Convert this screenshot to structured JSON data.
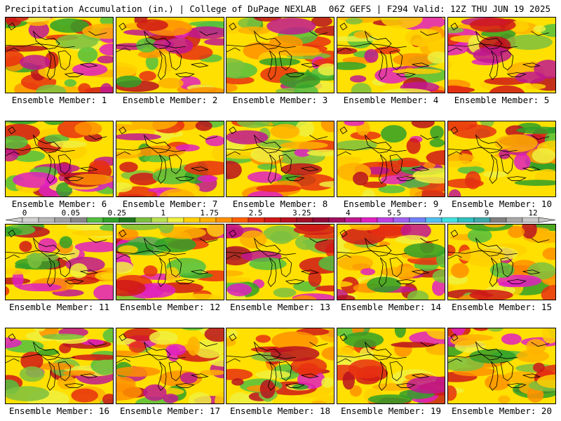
{
  "header": {
    "left": "Precipitation Accumulation (in.) | College of DuPage NEXLAB",
    "right": "06Z GEFS | F294 Valid: 12Z THU JUN 19 2025"
  },
  "members": [
    {
      "label": "Ensemble Member: 1"
    },
    {
      "label": "Ensemble Member: 2"
    },
    {
      "label": "Ensemble Member: 3"
    },
    {
      "label": "Ensemble Member: 4"
    },
    {
      "label": "Ensemble Member: 5"
    },
    {
      "label": "Ensemble Member: 6"
    },
    {
      "label": "Ensemble Member: 7"
    },
    {
      "label": "Ensemble Member: 8"
    },
    {
      "label": "Ensemble Member: 9"
    },
    {
      "label": "Ensemble Member: 10"
    },
    {
      "label": "Ensemble Member: 11"
    },
    {
      "label": "Ensemble Member: 12"
    },
    {
      "label": "Ensemble Member: 13"
    },
    {
      "label": "Ensemble Member: 14"
    },
    {
      "label": "Ensemble Member: 15"
    },
    {
      "label": "Ensemble Member: 16"
    },
    {
      "label": "Ensemble Member: 17"
    },
    {
      "label": "Ensemble Member: 18"
    },
    {
      "label": "Ensemble Member: 19"
    },
    {
      "label": "Ensemble Member: 20"
    }
  ],
  "colorbar": {
    "tick_labels": [
      "0",
      "0.05",
      "0.25",
      "1",
      "1.75",
      "2.5",
      "3.25",
      "4",
      "5.5",
      "7",
      "9",
      "12"
    ],
    "colors": [
      "#d0d0d0",
      "#b8b8b8",
      "#a0a0a0",
      "#888888",
      "#54c040",
      "#30a028",
      "#20781c",
      "#7cc040",
      "#b8e050",
      "#f0f040",
      "#ffd000",
      "#ffb000",
      "#ff9000",
      "#ff6000",
      "#e83010",
      "#d01818",
      "#b81020",
      "#a01028",
      "#900838",
      "#a01060",
      "#c01890",
      "#e020c0",
      "#c040e0",
      "#a060f0",
      "#7080f8",
      "#50c0f0",
      "#40e0e0",
      "#30c0c0",
      "#40a8a8",
      "#808080",
      "#a8a8a8",
      "#c8c8c8"
    ]
  }
}
